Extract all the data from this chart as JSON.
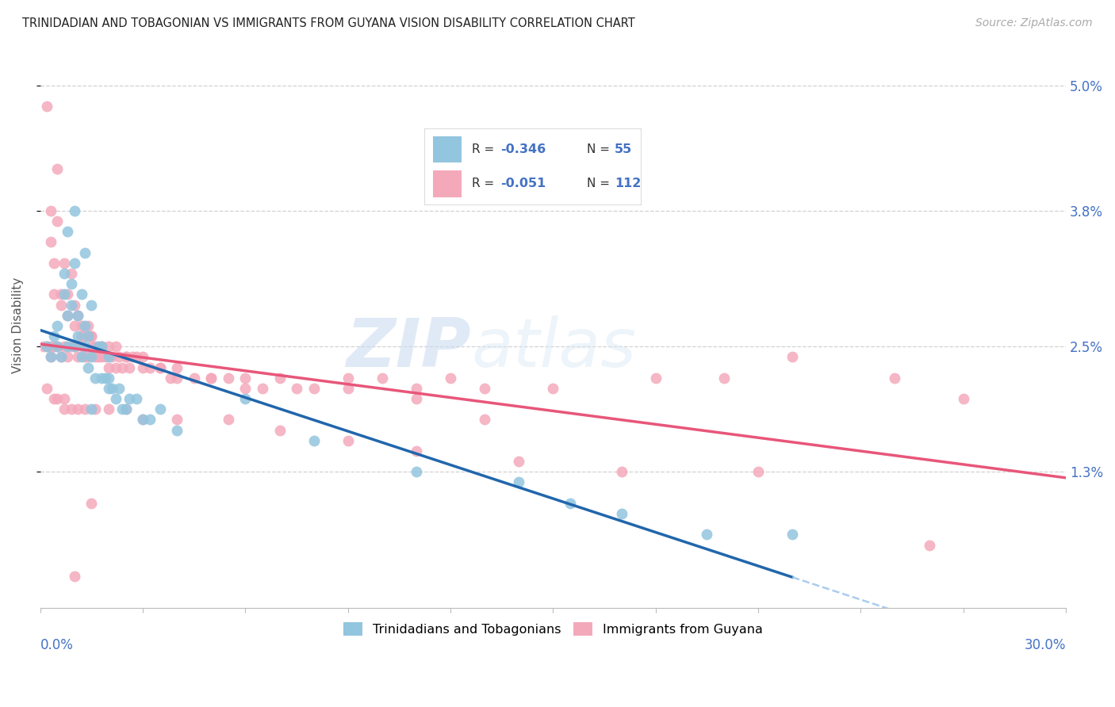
{
  "title": "TRINIDADIAN AND TOBAGONIAN VS IMMIGRANTS FROM GUYANA VISION DISABILITY CORRELATION CHART",
  "source": "Source: ZipAtlas.com",
  "ylabel": "Vision Disability",
  "ytick_labels": [
    "5.0%",
    "3.8%",
    "2.5%",
    "1.3%"
  ],
  "ytick_values": [
    0.05,
    0.038,
    0.025,
    0.013
  ],
  "xlim": [
    0.0,
    0.3
  ],
  "ylim": [
    0.0,
    0.054
  ],
  "legend_r1": "-0.346",
  "legend_n1": "55",
  "legend_r2": "-0.051",
  "legend_n2": "112",
  "color_blue": "#92c5de",
  "color_pink": "#f4a9bb",
  "color_blue_line": "#2166ac",
  "color_pink_line": "#e8567a",
  "color_blue_dash": "#aaccee",
  "watermark": "ZIPatlas",
  "blue_x": [
    0.002,
    0.003,
    0.004,
    0.005,
    0.005,
    0.006,
    0.007,
    0.007,
    0.008,
    0.008,
    0.009,
    0.009,
    0.01,
    0.01,
    0.011,
    0.011,
    0.012,
    0.012,
    0.013,
    0.013,
    0.014,
    0.014,
    0.015,
    0.015,
    0.016,
    0.017,
    0.018,
    0.018,
    0.019,
    0.02,
    0.02,
    0.021,
    0.022,
    0.023,
    0.024,
    0.025,
    0.026,
    0.028,
    0.03,
    0.032,
    0.035,
    0.04,
    0.06,
    0.08,
    0.11,
    0.14,
    0.155,
    0.17,
    0.195,
    0.22,
    0.008,
    0.01,
    0.013,
    0.015,
    0.02
  ],
  "blue_y": [
    0.025,
    0.024,
    0.026,
    0.027,
    0.025,
    0.024,
    0.03,
    0.032,
    0.025,
    0.028,
    0.029,
    0.031,
    0.025,
    0.033,
    0.026,
    0.028,
    0.03,
    0.024,
    0.025,
    0.027,
    0.023,
    0.026,
    0.024,
    0.029,
    0.022,
    0.025,
    0.022,
    0.025,
    0.022,
    0.021,
    0.024,
    0.021,
    0.02,
    0.021,
    0.019,
    0.019,
    0.02,
    0.02,
    0.018,
    0.018,
    0.019,
    0.017,
    0.02,
    0.016,
    0.013,
    0.012,
    0.01,
    0.009,
    0.007,
    0.007,
    0.036,
    0.038,
    0.034,
    0.019,
    0.022
  ],
  "pink_x": [
    0.001,
    0.002,
    0.002,
    0.003,
    0.003,
    0.003,
    0.004,
    0.004,
    0.005,
    0.005,
    0.005,
    0.006,
    0.006,
    0.007,
    0.007,
    0.008,
    0.008,
    0.009,
    0.009,
    0.01,
    0.01,
    0.011,
    0.011,
    0.012,
    0.012,
    0.013,
    0.013,
    0.014,
    0.014,
    0.015,
    0.015,
    0.016,
    0.016,
    0.017,
    0.018,
    0.018,
    0.019,
    0.02,
    0.02,
    0.021,
    0.022,
    0.023,
    0.024,
    0.025,
    0.026,
    0.027,
    0.028,
    0.03,
    0.032,
    0.035,
    0.038,
    0.04,
    0.045,
    0.05,
    0.055,
    0.06,
    0.065,
    0.07,
    0.08,
    0.09,
    0.1,
    0.11,
    0.12,
    0.13,
    0.15,
    0.18,
    0.2,
    0.22,
    0.25,
    0.27,
    0.003,
    0.004,
    0.006,
    0.008,
    0.01,
    0.012,
    0.015,
    0.018,
    0.022,
    0.025,
    0.03,
    0.035,
    0.04,
    0.05,
    0.06,
    0.075,
    0.09,
    0.11,
    0.13,
    0.005,
    0.007,
    0.009,
    0.011,
    0.013,
    0.016,
    0.02,
    0.025,
    0.03,
    0.04,
    0.055,
    0.07,
    0.09,
    0.11,
    0.14,
    0.17,
    0.21,
    0.26,
    0.002,
    0.004,
    0.007,
    0.01,
    0.015
  ],
  "pink_y": [
    0.025,
    0.048,
    0.025,
    0.038,
    0.025,
    0.024,
    0.033,
    0.025,
    0.042,
    0.037,
    0.025,
    0.03,
    0.024,
    0.033,
    0.025,
    0.03,
    0.024,
    0.032,
    0.025,
    0.029,
    0.025,
    0.028,
    0.024,
    0.027,
    0.025,
    0.026,
    0.024,
    0.027,
    0.024,
    0.026,
    0.025,
    0.024,
    0.025,
    0.024,
    0.025,
    0.024,
    0.024,
    0.025,
    0.023,
    0.024,
    0.023,
    0.024,
    0.023,
    0.024,
    0.023,
    0.024,
    0.024,
    0.023,
    0.023,
    0.023,
    0.022,
    0.023,
    0.022,
    0.022,
    0.022,
    0.022,
    0.021,
    0.022,
    0.021,
    0.022,
    0.022,
    0.021,
    0.022,
    0.021,
    0.021,
    0.022,
    0.022,
    0.024,
    0.022,
    0.02,
    0.035,
    0.03,
    0.029,
    0.028,
    0.027,
    0.026,
    0.026,
    0.025,
    0.025,
    0.024,
    0.024,
    0.023,
    0.022,
    0.022,
    0.021,
    0.021,
    0.021,
    0.02,
    0.018,
    0.02,
    0.02,
    0.019,
    0.019,
    0.019,
    0.019,
    0.019,
    0.019,
    0.018,
    0.018,
    0.018,
    0.017,
    0.016,
    0.015,
    0.014,
    0.013,
    0.013,
    0.006,
    0.021,
    0.02,
    0.019,
    0.003,
    0.01
  ]
}
